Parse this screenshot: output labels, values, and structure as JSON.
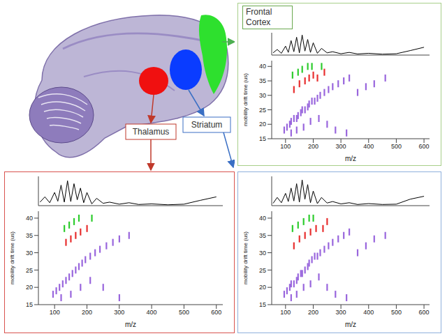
{
  "chart_data": [
    {
      "type": "line",
      "xlim": [
        50,
        620
      ],
      "ylim": [
        0,
        100
      ],
      "tick_labels": false,
      "color": "#000000",
      "x": [
        55,
        70,
        85,
        100,
        110,
        120,
        130,
        140,
        150,
        160,
        170,
        180,
        190,
        200,
        215,
        230,
        250,
        270,
        300,
        330,
        360,
        400,
        450,
        500,
        550,
        600
      ],
      "values": [
        10,
        25,
        8,
        40,
        12,
        65,
        15,
        80,
        10,
        90,
        18,
        70,
        12,
        55,
        8,
        30,
        10,
        15,
        6,
        12,
        5,
        8,
        4,
        6,
        20,
        35
      ]
    },
    {
      "type": "scatter",
      "title": "Frontal Cortex",
      "x_label": "m/z",
      "y_label": "mobility drift time (us)",
      "xlim": [
        50,
        620
      ],
      "ylim": [
        15,
        42
      ],
      "xticks": [
        100,
        200,
        300,
        400,
        500,
        600
      ],
      "yticks": [
        15,
        20,
        25,
        30,
        35,
        40
      ],
      "series": [
        {
          "color": "#9966dd",
          "x": [
            95,
            105,
            115,
            120,
            130,
            140,
            145,
            155,
            160,
            170,
            180,
            185,
            195,
            205,
            215,
            225,
            240,
            255,
            270,
            290,
            310,
            330,
            360,
            390,
            420,
            460,
            120,
            140,
            165,
            190,
            220,
            250,
            280,
            320
          ],
          "values": [
            18,
            19,
            20,
            21,
            22,
            22,
            23,
            24,
            25,
            25,
            26,
            27,
            28,
            28,
            29,
            30,
            31,
            32,
            33,
            34,
            35,
            36,
            31,
            33,
            34,
            36,
            17,
            18,
            19,
            21,
            22,
            20,
            18,
            17
          ]
        },
        {
          "color": "#e83030",
          "x": [
            130,
            150,
            170,
            185,
            200,
            215,
            240
          ],
          "values": [
            32,
            34,
            35,
            36,
            37,
            36,
            38
          ]
        },
        {
          "color": "#2ecc2e",
          "x": [
            125,
            145,
            160,
            180,
            195,
            230
          ],
          "values": [
            37,
            38,
            39,
            40,
            40,
            40
          ]
        }
      ]
    },
    {
      "type": "line",
      "xlim": [
        50,
        620
      ],
      "ylim": [
        0,
        100
      ],
      "tick_labels": false,
      "color": "#000000",
      "x": [
        55,
        70,
        85,
        100,
        110,
        120,
        130,
        140,
        150,
        160,
        170,
        180,
        190,
        200,
        215,
        230,
        250,
        270,
        300,
        330,
        360,
        400,
        450,
        500,
        550,
        600
      ],
      "values": [
        12,
        30,
        10,
        45,
        15,
        70,
        12,
        85,
        14,
        75,
        20,
        60,
        10,
        45,
        6,
        25,
        8,
        12,
        5,
        10,
        4,
        6,
        3,
        5,
        18,
        30
      ]
    },
    {
      "type": "scatter",
      "title": "Thalamus",
      "x_label": "m/z",
      "y_label": "mobility drift time (us)",
      "xlim": [
        50,
        620
      ],
      "ylim": [
        15,
        42
      ],
      "xticks": [
        100,
        200,
        300,
        400,
        500,
        600
      ],
      "yticks": [
        15,
        20,
        25,
        30,
        35,
        40
      ],
      "series": [
        {
          "color": "#9966dd",
          "x": [
            95,
            105,
            115,
            125,
            135,
            145,
            155,
            165,
            175,
            185,
            195,
            210,
            225,
            240,
            260,
            280,
            300,
            330,
            120,
            150,
            180,
            210,
            250,
            300
          ],
          "values": [
            18,
            19,
            20,
            21,
            22,
            23,
            24,
            25,
            26,
            27,
            28,
            29,
            30,
            31,
            32,
            33,
            34,
            35,
            17,
            18,
            20,
            22,
            20,
            17
          ]
        },
        {
          "color": "#e83030",
          "x": [
            135,
            150,
            165,
            180,
            200
          ],
          "values": [
            33,
            34,
            35,
            36,
            37
          ]
        },
        {
          "color": "#2ecc2e",
          "x": [
            130,
            145,
            160,
            175,
            215
          ],
          "values": [
            37,
            38,
            39,
            40,
            40
          ]
        }
      ]
    },
    {
      "type": "line",
      "xlim": [
        50,
        620
      ],
      "ylim": [
        0,
        100
      ],
      "tick_labels": false,
      "color": "#000000",
      "x": [
        55,
        70,
        85,
        100,
        110,
        120,
        130,
        140,
        150,
        160,
        170,
        180,
        190,
        200,
        215,
        230,
        250,
        270,
        300,
        330,
        360,
        400,
        450,
        500,
        550,
        600
      ],
      "values": [
        8,
        28,
        10,
        42,
        14,
        60,
        16,
        75,
        12,
        88,
        22,
        72,
        10,
        50,
        7,
        28,
        9,
        14,
        6,
        10,
        4,
        7,
        4,
        5,
        22,
        32
      ]
    },
    {
      "type": "scatter",
      "title": "Striatum",
      "x_label": "m/z",
      "y_label": "mobility drift time (us)",
      "xlim": [
        50,
        620
      ],
      "ylim": [
        15,
        42
      ],
      "xticks": [
        100,
        200,
        300,
        400,
        500,
        600
      ],
      "yticks": [
        15,
        20,
        25,
        30,
        35,
        40
      ],
      "series": [
        {
          "color": "#9966dd",
          "x": [
            95,
            105,
            115,
            120,
            130,
            140,
            145,
            155,
            160,
            170,
            180,
            185,
            195,
            205,
            215,
            225,
            240,
            255,
            270,
            290,
            310,
            330,
            360,
            390,
            420,
            460,
            120,
            140,
            165,
            190,
            220,
            250,
            280,
            320
          ],
          "values": [
            18,
            19,
            20,
            21,
            21,
            22,
            23,
            24,
            24,
            25,
            26,
            27,
            28,
            29,
            29,
            30,
            31,
            32,
            33,
            34,
            35,
            36,
            30,
            32,
            34,
            35,
            17,
            18,
            20,
            21,
            23,
            20,
            18,
            17
          ]
        },
        {
          "color": "#e83030",
          "x": [
            130,
            150,
            170,
            190,
            210,
            235,
            250
          ],
          "values": [
            32,
            34,
            35,
            36,
            37,
            37,
            39
          ]
        },
        {
          "color": "#2ecc2e",
          "x": [
            125,
            145,
            165,
            185,
            200
          ],
          "values": [
            37,
            38,
            39,
            40,
            40
          ]
        }
      ]
    }
  ]
}
